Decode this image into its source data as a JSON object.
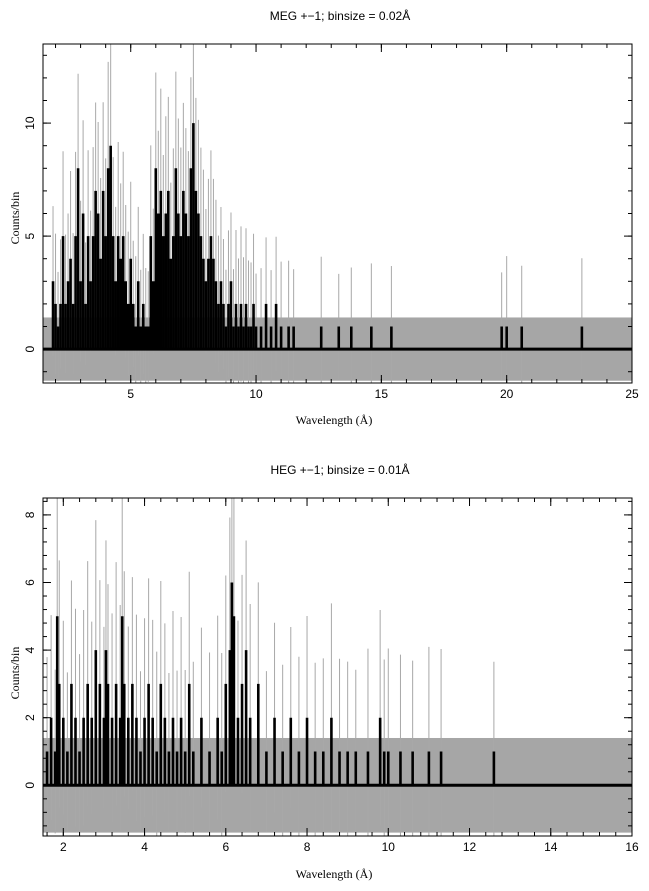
{
  "chart_data": [
    {
      "type": "line",
      "subtype": "histogram-step",
      "title": "MEG +−1; binsize = 0.02Å",
      "xlabel": "Wavelength (Å)",
      "ylabel": "Counts/bin",
      "xlim": [
        1.5,
        25
      ],
      "ylim": [
        -1.5,
        13.5
      ],
      "xticks": [
        5,
        10,
        15,
        20,
        25
      ],
      "xtick_labels": [
        "5",
        "10",
        "15",
        "20",
        "25"
      ],
      "yticks": [
        0,
        5,
        10
      ],
      "ytick_labels": [
        "0",
        "5",
        "10"
      ],
      "grid": false,
      "legend": "none",
      "noise_band": {
        "y_low": -1.4,
        "y_high": 1.4,
        "x_start": 1.5,
        "x_end": 25
      },
      "error_bar_color": "#a8a8a8",
      "band_color": "#a6a6a6",
      "line_color": "#000000",
      "series": [
        {
          "x": [
            1.9,
            2.0,
            2.1,
            2.2,
            2.3,
            2.4,
            2.5,
            2.6,
            2.7,
            2.8,
            2.9,
            3.0,
            3.1,
            3.2,
            3.3,
            3.4,
            3.5,
            3.6,
            3.7,
            3.8,
            3.9,
            4.0,
            4.1,
            4.2,
            4.3,
            4.4,
            4.5,
            4.6,
            4.7,
            4.8,
            4.9,
            5.0,
            5.1,
            5.2,
            5.3,
            5.4,
            5.5,
            5.6,
            5.7,
            5.8,
            5.9,
            6.0,
            6.1,
            6.2,
            6.3,
            6.4,
            6.5,
            6.6,
            6.7,
            6.8,
            6.9,
            7.0,
            7.1,
            7.2,
            7.3,
            7.4,
            7.5,
            7.6,
            7.7,
            7.8,
            7.9,
            8.0,
            8.1,
            8.2,
            8.3,
            8.4,
            8.5,
            8.6,
            8.7,
            8.8,
            8.9,
            9.0,
            9.1,
            9.2,
            9.3,
            9.4,
            9.5,
            9.6,
            9.7,
            9.8,
            9.9,
            10.0,
            10.2,
            10.4,
            10.6,
            10.8,
            11.0,
            11.3,
            11.5,
            12.6,
            13.3,
            13.8,
            14.6,
            15.4,
            19.8,
            20.0,
            20.6,
            23.0
          ],
          "y": [
            3,
            2,
            1,
            2,
            5,
            2,
            3,
            4,
            2,
            5,
            8,
            3,
            6,
            2,
            5,
            3,
            5,
            7,
            6,
            4,
            7,
            5,
            8,
            9,
            5,
            3,
            5,
            4,
            5,
            3,
            2,
            4,
            2,
            1,
            3,
            1,
            2,
            1,
            1,
            5,
            3,
            8,
            6,
            7,
            5,
            6,
            7,
            4,
            5,
            8,
            6,
            5,
            7,
            6,
            5,
            8,
            10,
            7,
            6,
            5,
            4,
            3,
            4,
            5,
            4,
            3,
            2,
            3,
            2,
            1,
            2,
            3,
            1,
            2,
            1,
            2,
            1,
            2,
            1,
            1,
            2,
            1,
            1,
            2,
            1,
            2,
            1,
            1,
            1,
            1,
            1,
            1,
            1,
            1,
            1,
            1,
            1,
            1
          ]
        }
      ]
    },
    {
      "type": "line",
      "subtype": "histogram-step",
      "title": "HEG +−1; binsize = 0.01Å",
      "xlabel": "Wavelength (Å)",
      "ylabel": "Counts/bin",
      "xlim": [
        1.5,
        16
      ],
      "ylim": [
        -1.5,
        8.5
      ],
      "xticks": [
        2,
        4,
        6,
        8,
        10,
        12,
        14,
        16
      ],
      "xtick_labels": [
        "2",
        "4",
        "6",
        "8",
        "10",
        "12",
        "14",
        "16"
      ],
      "yticks": [
        0,
        2,
        4,
        6,
        8
      ],
      "ytick_labels": [
        "0",
        "2",
        "4",
        "6",
        "8"
      ],
      "grid": false,
      "legend": "none",
      "noise_band": {
        "y_low": -1.4,
        "y_high": 1.4,
        "x_start": 1.5,
        "x_end": 16
      },
      "error_bar_color": "#a8a8a8",
      "band_color": "#a6a6a6",
      "line_color": "#000000",
      "series": [
        {
          "x": [
            1.6,
            1.7,
            1.8,
            1.85,
            1.9,
            2.0,
            2.1,
            2.2,
            2.3,
            2.4,
            2.5,
            2.6,
            2.7,
            2.8,
            2.9,
            3.0,
            3.05,
            3.1,
            3.2,
            3.3,
            3.4,
            3.45,
            3.5,
            3.6,
            3.7,
            3.8,
            3.9,
            4.0,
            4.1,
            4.2,
            4.3,
            4.4,
            4.5,
            4.6,
            4.7,
            4.8,
            4.9,
            5.0,
            5.1,
            5.2,
            5.4,
            5.6,
            5.8,
            5.9,
            6.0,
            6.1,
            6.15,
            6.2,
            6.3,
            6.4,
            6.5,
            6.6,
            6.8,
            7.0,
            7.2,
            7.4,
            7.6,
            7.8,
            8.0,
            8.2,
            8.4,
            8.6,
            8.8,
            9.0,
            9.2,
            9.5,
            9.8,
            9.9,
            10.0,
            10.3,
            10.6,
            11.0,
            11.3,
            12.6
          ],
          "y": [
            1,
            2,
            1,
            5,
            3,
            2,
            1,
            3,
            2,
            1,
            2,
            3,
            2,
            4,
            3,
            2,
            4,
            3,
            2,
            3,
            2,
            5,
            3,
            2,
            3,
            2,
            1,
            2,
            3,
            2,
            1,
            3,
            2,
            1,
            2,
            1,
            2,
            1,
            3,
            1,
            2,
            1,
            2,
            1,
            3,
            4,
            6,
            5,
            2,
            3,
            4,
            2,
            3,
            1,
            2,
            1,
            2,
            1,
            2,
            1,
            1,
            2,
            1,
            1,
            1,
            1,
            2,
            1,
            1,
            1,
            1,
            1,
            1,
            1
          ]
        }
      ]
    }
  ]
}
